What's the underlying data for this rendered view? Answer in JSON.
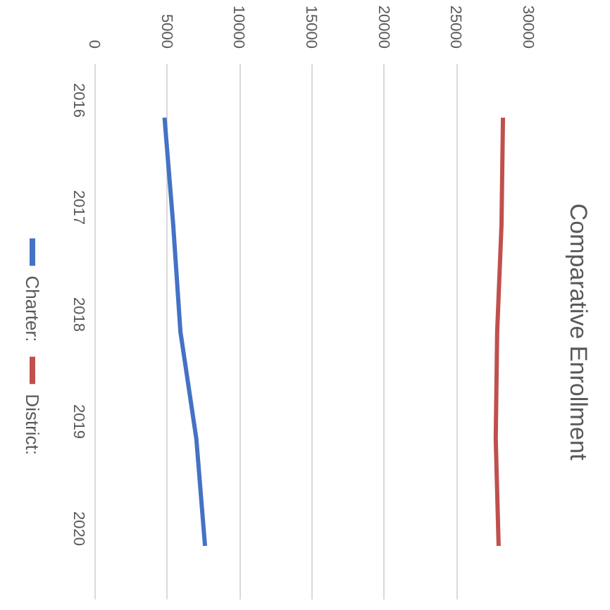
{
  "chart_data": {
    "type": "line",
    "orientation": "horizontal",
    "title": "Comparative Enrollment",
    "categories": [
      "2016",
      "2017",
      "2018",
      "2019",
      "2020"
    ],
    "series": [
      {
        "name": "Charter:",
        "color": "#4472c4",
        "values": [
          4800,
          5400,
          5900,
          7000,
          7600
        ]
      },
      {
        "name": "District:",
        "color": "#c0504d",
        "values": [
          28200,
          28100,
          27800,
          27700,
          27900
        ]
      }
    ],
    "xlim": [
      0,
      30000
    ],
    "xticks": [
      0,
      5000,
      10000,
      15000,
      20000,
      25000,
      30000
    ],
    "grid": "x",
    "legend": "left"
  }
}
